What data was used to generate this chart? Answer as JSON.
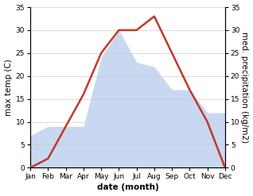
{
  "months": [
    "Jan",
    "Feb",
    "Mar",
    "Apr",
    "May",
    "Jun",
    "Jul",
    "Aug",
    "Sep",
    "Oct",
    "Nov",
    "Dec"
  ],
  "temperature": [
    0,
    2,
    9,
    16,
    25,
    30,
    30,
    33,
    25,
    17,
    10,
    0
  ],
  "precipitation": [
    7,
    9,
    9,
    9,
    24,
    30,
    23,
    22,
    17,
    17,
    12,
    12
  ],
  "temp_color": "#c0392b",
  "precip_fill_color": "#c8d8f0",
  "ylim": [
    0,
    35
  ],
  "xlabel": "date (month)",
  "ylabel_left": "max temp (C)",
  "ylabel_right": "med. precipitation (kg/m2)",
  "bg_color": "#ffffff",
  "temp_linewidth": 1.8,
  "label_fontsize": 7.5,
  "tick_fontsize": 6.5,
  "yticks": [
    0,
    5,
    10,
    15,
    20,
    25,
    30,
    35
  ]
}
